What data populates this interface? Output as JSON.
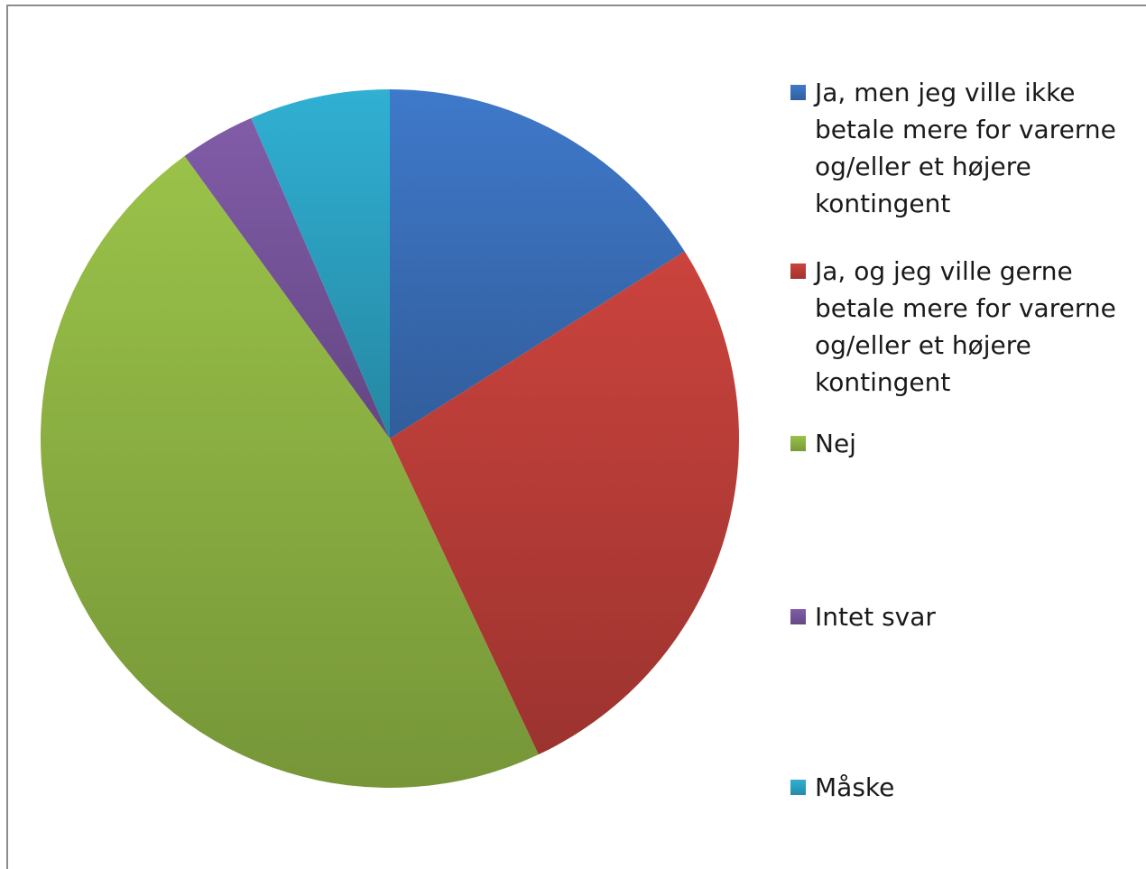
{
  "chart_data": {
    "type": "pie",
    "title": "",
    "legend_position": "right",
    "slices": [
      {
        "label": "Ja, men jeg ville ikke betale mere for varerne og/eller et højere kontingent",
        "value": 16,
        "color": "#3d74c2"
      },
      {
        "label": "Ja, og jeg ville gerne betale mere for varerne og/eller et højere kontingent",
        "value": 27,
        "color": "#c3403b"
      },
      {
        "label": "Nej",
        "value": 47,
        "color": "#94bb46"
      },
      {
        "label": "Intet svar",
        "value": 3.5,
        "color": "#7c58a2"
      },
      {
        "label": "Måske",
        "value": 6.5,
        "color": "#2ea9cb"
      }
    ]
  },
  "legend": {
    "items": [
      "Ja, men jeg ville ikke\nbetale mere for varerne\nog/eller et højere\nkontingent",
      "Ja, og jeg ville gerne\nbetale mere for varerne\nog/eller et højere\nkontingent",
      "Nej",
      "Intet svar",
      "Måske"
    ]
  }
}
